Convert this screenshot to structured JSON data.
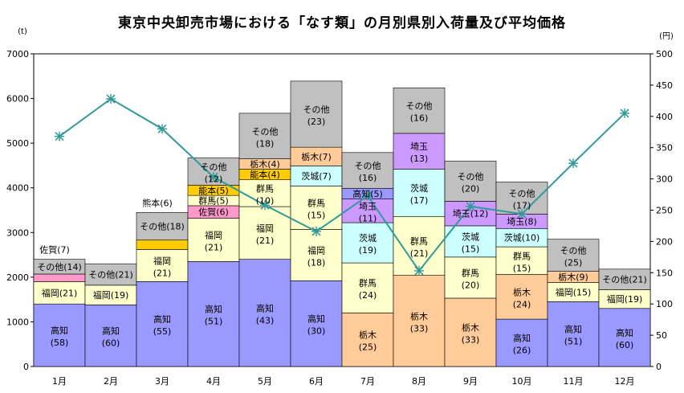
{
  "chart_data": {
    "type": "bar",
    "title": "東京中央卸売市場における「なす類」の月別県別入荷量及び平均価格",
    "ylabel_left_unit": "(t)",
    "ylabel_right_unit": "(円)",
    "ylim": [
      0,
      7000
    ],
    "y2lim": [
      0,
      500
    ],
    "yticks": [
      "0",
      "1000",
      "2000",
      "3000",
      "4000",
      "5000",
      "6000",
      "7000"
    ],
    "y2ticks": [
      "0",
      "50",
      "100",
      "150",
      "200",
      "250",
      "300",
      "350",
      "400",
      "450",
      "500"
    ],
    "categories": [
      "1月",
      "2月",
      "3月",
      "4月",
      "5月",
      "6月",
      "7月",
      "8月",
      "9月",
      "10月",
      "11月",
      "12月"
    ],
    "colors": {
      "高知": "#9999ff",
      "福岡": "#ffffcc",
      "その他": "#c0c0c0",
      "佐賀": "#ff99cc",
      "群馬": "#ffffcc",
      "能本": "#ffcc00",
      "栃木": "#ffcc99",
      "茨城": "#ccffff",
      "埼玉": "#cc99ff",
      "price_line": "#339999"
    },
    "bars": [
      {
        "month": "1月",
        "segments": [
          {
            "pref": "高知",
            "value": 1400,
            "label": "高知",
            "pct": "(58)"
          },
          {
            "pref": "福岡",
            "value": 500,
            "label": "福岡(21)",
            "pct": ""
          },
          {
            "pref": "佐賀",
            "value": 170,
            "label": "",
            "pct": ""
          },
          {
            "pref": "その他",
            "value": 330,
            "label": "その他(14)",
            "pct": ""
          }
        ],
        "above": "佐賀(7)"
      },
      {
        "month": "2月",
        "segments": [
          {
            "pref": "高知",
            "value": 1380,
            "label": "高知",
            "pct": "(60)"
          },
          {
            "pref": "福岡",
            "value": 440,
            "label": "福岡(19)",
            "pct": ""
          },
          {
            "pref": "その他",
            "value": 480,
            "label": "その他(21)",
            "pct": ""
          }
        ],
        "above": ""
      },
      {
        "month": "3月",
        "segments": [
          {
            "pref": "高知",
            "value": 1900,
            "label": "高知",
            "pct": "(55)"
          },
          {
            "pref": "福岡",
            "value": 720,
            "label": "福岡",
            "pct": "(21)"
          },
          {
            "pref": "能本",
            "value": 210,
            "label": "",
            "pct": ""
          },
          {
            "pref": "その他",
            "value": 620,
            "label": "その他(18)",
            "pct": ""
          }
        ],
        "above": "熊本(6)"
      },
      {
        "month": "4月",
        "segments": [
          {
            "pref": "高知",
            "value": 2350,
            "label": "高知",
            "pct": "(51)"
          },
          {
            "pref": "福岡",
            "value": 970,
            "label": "福岡",
            "pct": "(21)"
          },
          {
            "pref": "佐賀",
            "value": 280,
            "label": "佐賀(6)",
            "pct": ""
          },
          {
            "pref": "群馬",
            "value": 230,
            "label": "群馬(5)",
            "pct": ""
          },
          {
            "pref": "能本",
            "value": 230,
            "label": "能本(5)",
            "pct": ""
          },
          {
            "pref": "その他",
            "value": 610,
            "label": "その他",
            "pct": "(12)"
          }
        ],
        "above": ""
      },
      {
        "month": "5月",
        "segments": [
          {
            "pref": "高知",
            "value": 2400,
            "label": "高知",
            "pct": "(43)"
          },
          {
            "pref": "福岡",
            "value": 1180,
            "label": "福岡",
            "pct": "(21)"
          },
          {
            "pref": "群馬",
            "value": 600,
            "label": "群馬",
            "pct": "(10)"
          },
          {
            "pref": "能本",
            "value": 240,
            "label": "能本(4)",
            "pct": ""
          },
          {
            "pref": "栃木",
            "value": 230,
            "label": "栃木(4)",
            "pct": ""
          },
          {
            "pref": "その他",
            "value": 1020,
            "label": "その他",
            "pct": "(18)"
          }
        ],
        "above": ""
      },
      {
        "month": "6月",
        "segments": [
          {
            "pref": "高知",
            "value": 1920,
            "label": "高知",
            "pct": "(30)"
          },
          {
            "pref": "福岡",
            "value": 1150,
            "label": "福岡",
            "pct": "(18)"
          },
          {
            "pref": "群馬",
            "value": 970,
            "label": "群馬",
            "pct": "(15)"
          },
          {
            "pref": "茨城",
            "value": 450,
            "label": "茨城(7)",
            "pct": ""
          },
          {
            "pref": "栃木",
            "value": 420,
            "label": "栃木(7)",
            "pct": ""
          },
          {
            "pref": "その他",
            "value": 1480,
            "label": "その他",
            "pct": "(23)"
          }
        ],
        "above": ""
      },
      {
        "month": "7月",
        "segments": [
          {
            "pref": "栃木",
            "value": 1200,
            "label": "栃木",
            "pct": "(25)"
          },
          {
            "pref": "群馬",
            "value": 1120,
            "label": "群馬",
            "pct": "(24)"
          },
          {
            "pref": "茨城",
            "value": 900,
            "label": "茨城",
            "pct": "(19)"
          },
          {
            "pref": "埼玉",
            "value": 530,
            "label": "埼玉",
            "pct": "(11)"
          },
          {
            "pref": "高知",
            "value": 240,
            "label": "高知(5)",
            "pct": ""
          },
          {
            "pref": "その他",
            "value": 800,
            "label": "その他",
            "pct": "(16)"
          }
        ],
        "above": ""
      },
      {
        "month": "8月",
        "segments": [
          {
            "pref": "栃木",
            "value": 2040,
            "label": "栃木",
            "pct": "(33)"
          },
          {
            "pref": "群馬",
            "value": 1320,
            "label": "群馬",
            "pct": "(21)"
          },
          {
            "pref": "茨城",
            "value": 1060,
            "label": "茨城",
            "pct": "(17)"
          },
          {
            "pref": "埼玉",
            "value": 800,
            "label": "埼玉",
            "pct": "(13)"
          },
          {
            "pref": "その他",
            "value": 1020,
            "label": "その他",
            "pct": "(16)"
          }
        ],
        "above": ""
      },
      {
        "month": "9月",
        "segments": [
          {
            "pref": "栃木",
            "value": 1530,
            "label": "栃木",
            "pct": "(33)"
          },
          {
            "pref": "群馬",
            "value": 920,
            "label": "群馬",
            "pct": "(20)"
          },
          {
            "pref": "茨城",
            "value": 700,
            "label": "茨城",
            "pct": "(15)"
          },
          {
            "pref": "埼玉",
            "value": 550,
            "label": "埼玉(12)",
            "pct": ""
          },
          {
            "pref": "その他",
            "value": 900,
            "label": "その他",
            "pct": "(20)"
          }
        ],
        "above": ""
      },
      {
        "month": "10月",
        "segments": [
          {
            "pref": "高知",
            "value": 1060,
            "label": "高知",
            "pct": "(26)"
          },
          {
            "pref": "栃木",
            "value": 1000,
            "label": "栃木",
            "pct": "(24)"
          },
          {
            "pref": "群馬",
            "value": 620,
            "label": "群馬",
            "pct": "(15)"
          },
          {
            "pref": "茨城",
            "value": 410,
            "label": "茨城(10)",
            "pct": ""
          },
          {
            "pref": "埼玉",
            "value": 320,
            "label": "埼玉(8)",
            "pct": ""
          },
          {
            "pref": "その他",
            "value": 720,
            "label": "その他",
            "pct": "(17)"
          }
        ],
        "above": ""
      },
      {
        "month": "11月",
        "segments": [
          {
            "pref": "高知",
            "value": 1450,
            "label": "高知",
            "pct": "(51)"
          },
          {
            "pref": "福岡",
            "value": 430,
            "label": "福岡(15)",
            "pct": ""
          },
          {
            "pref": "栃木",
            "value": 250,
            "label": "栃木(9)",
            "pct": ""
          },
          {
            "pref": "その他",
            "value": 720,
            "label": "その他",
            "pct": "(25)"
          }
        ],
        "above": ""
      },
      {
        "month": "12月",
        "segments": [
          {
            "pref": "高知",
            "value": 1300,
            "label": "高知",
            "pct": "(60)"
          },
          {
            "pref": "福岡",
            "value": 420,
            "label": "福岡(19)",
            "pct": ""
          },
          {
            "pref": "その他",
            "value": 460,
            "label": "その他(21)",
            "pct": ""
          }
        ],
        "above": ""
      }
    ],
    "price_series": {
      "values": [
        368,
        428,
        380,
        303,
        258,
        216,
        273,
        153,
        256,
        244,
        325,
        405
      ]
    }
  }
}
